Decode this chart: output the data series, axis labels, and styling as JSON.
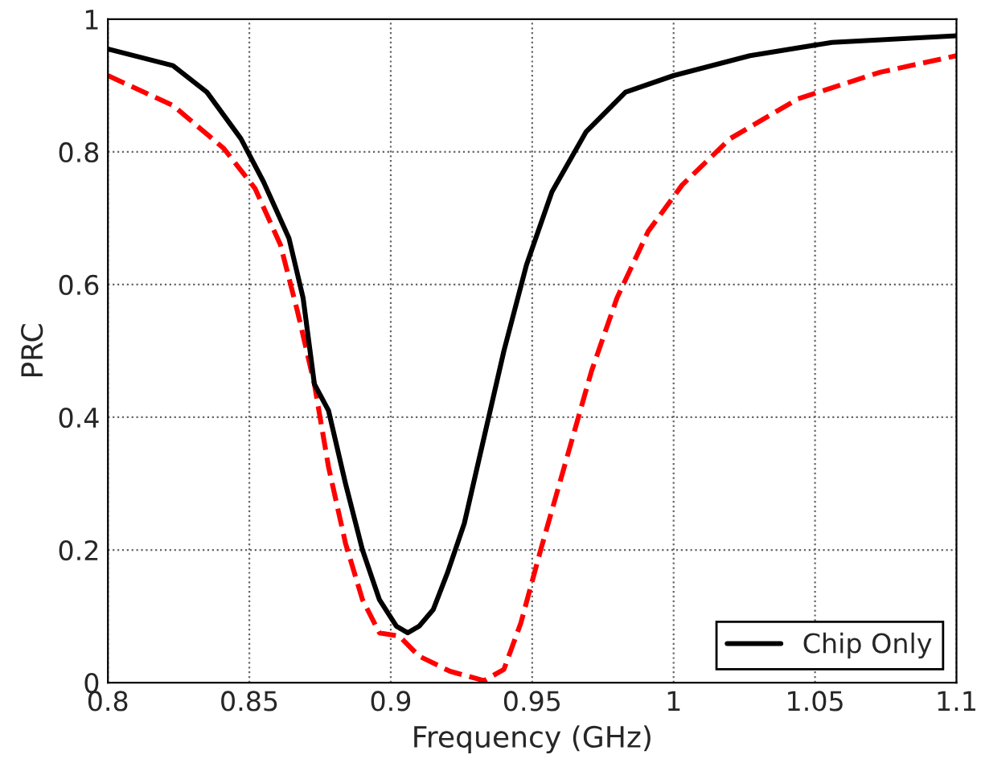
{
  "chart_data": {
    "type": "line",
    "xlabel": "Frequency (GHz)",
    "ylabel": "PRC",
    "xlim": [
      0.8,
      1.1
    ],
    "ylim": [
      0,
      1
    ],
    "xticks": [
      {
        "value": 0.8,
        "label": "0.8"
      },
      {
        "value": 0.85,
        "label": "0.85"
      },
      {
        "value": 0.9,
        "label": "0.9"
      },
      {
        "value": 0.95,
        "label": "0.95"
      },
      {
        "value": 1.0,
        "label": "1"
      },
      {
        "value": 1.05,
        "label": "1.05"
      },
      {
        "value": 1.1,
        "label": "1.1"
      }
    ],
    "yticks": [
      0,
      0.2,
      0.4,
      0.6,
      0.8,
      {
        "value": 1,
        "label": "1"
      }
    ],
    "grid": true,
    "legend": "bottom right",
    "series": [
      {
        "color": "#ff0000",
        "line_style": "dashed",
        "x": [
          0.8,
          0.823,
          0.841,
          0.852,
          0.861,
          0.867,
          0.873,
          0.878,
          0.884,
          0.89,
          0.896,
          0.903,
          0.91,
          0.921,
          0.933,
          0.94,
          0.946,
          0.953,
          0.962,
          0.971,
          0.98,
          0.991,
          1.003,
          1.02,
          1.044,
          1.073,
          1.1
        ],
        "values": [
          0.915,
          0.87,
          0.805,
          0.745,
          0.66,
          0.56,
          0.45,
          0.325,
          0.21,
          0.125,
          0.075,
          0.07,
          0.04,
          0.017,
          0.003,
          0.02,
          0.09,
          0.2,
          0.335,
          0.47,
          0.58,
          0.68,
          0.75,
          0.82,
          0.88,
          0.92,
          0.945
        ]
      },
      {
        "name": "Chip Only",
        "color": "#000000",
        "line_style": "solid",
        "x": [
          0.8,
          0.823,
          0.835,
          0.847,
          0.855,
          0.864,
          0.869,
          0.873,
          0.878,
          0.884,
          0.89,
          0.896,
          0.902,
          0.906,
          0.91,
          0.915,
          0.92,
          0.926,
          0.933,
          0.94,
          0.948,
          0.957,
          0.969,
          0.983,
          1.0,
          1.027,
          1.056,
          1.1
        ],
        "values": [
          0.955,
          0.93,
          0.89,
          0.82,
          0.755,
          0.67,
          0.58,
          0.45,
          0.41,
          0.3,
          0.2,
          0.125,
          0.085,
          0.075,
          0.085,
          0.11,
          0.165,
          0.24,
          0.37,
          0.5,
          0.63,
          0.74,
          0.83,
          0.89,
          0.915,
          0.945,
          0.965,
          0.975
        ]
      }
    ]
  }
}
